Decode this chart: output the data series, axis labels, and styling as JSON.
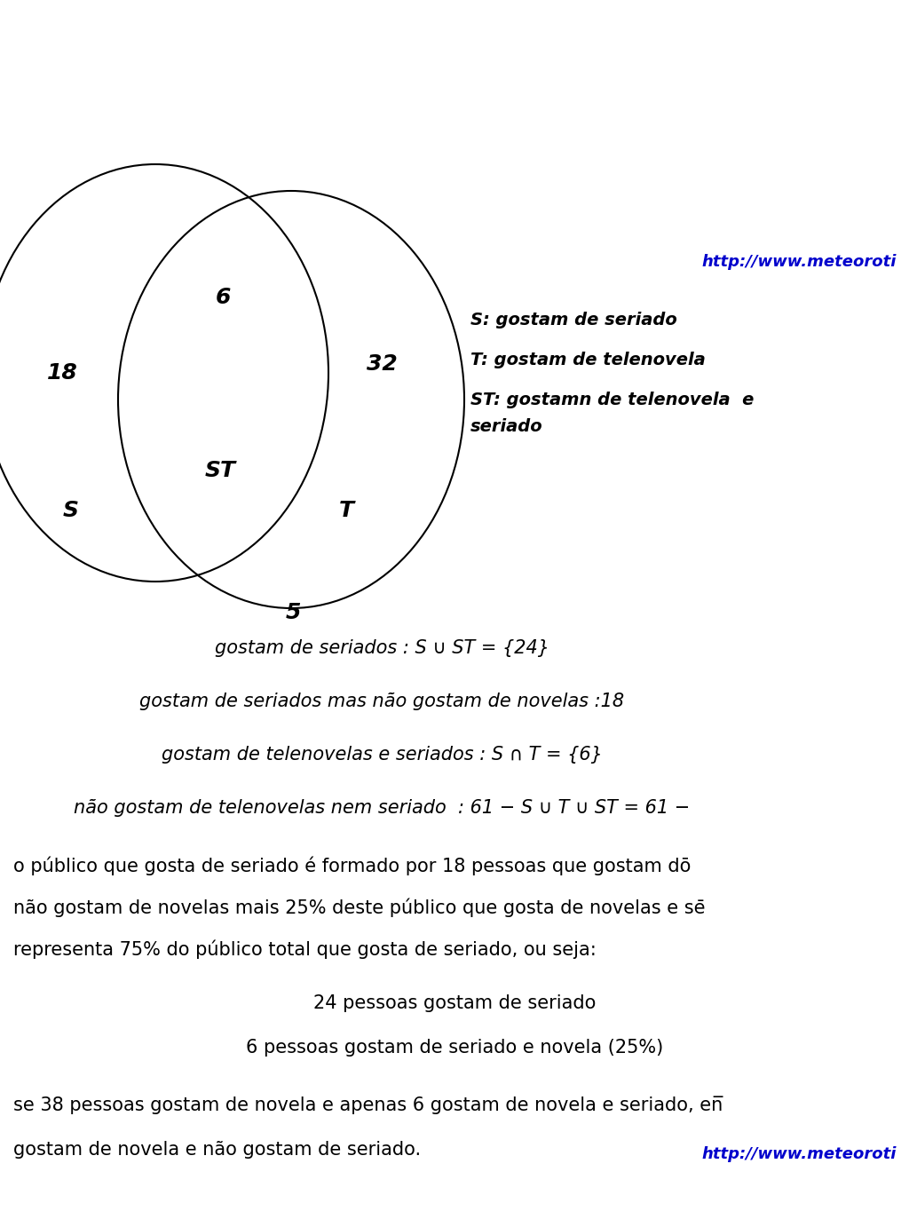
{
  "background_color": "#ffffff",
  "url_text": "http://www.meteoroti",
  "url_color": "#0000cc",
  "url_fontsize": 13,
  "circle_linewidth": 1.5,
  "circle_edgecolor": "#000000",
  "circle_facecolor": "none",
  "label_S": "S",
  "label_T": "T",
  "label_ST": "ST",
  "label_18": "18",
  "label_6": "6",
  "label_32": "32",
  "label_5": "5",
  "venn_fontsize": 18,
  "legend_S": "S: gostam de seriado",
  "legend_T": "T: gostam de telenovela",
  "legend_ST_line1": "ST: gostamn de telenovela  e",
  "legend_ST_line2": "seriado",
  "legend_fontsize": 14,
  "legend_color": "#000000",
  "line1": "gostam de seriados : S ∪ ST = {24}",
  "line2": "gostam de seriados mas não gostam de novelas :18",
  "line3": "gostam de telenovelas e seriados : S ∩ T = {6}",
  "line4": "não gostam de telenovelas nem seriado  : 61 − S ∪ T ∪ ST = 61 −",
  "line5": "o público que gosta de seriado é formado por 18 pessoas que gostam dō",
  "line6": "não gostam de novelas mais 25% deste público que gosta de novelas e sē",
  "line7": "representa 75% do público total que gosta de seriado, ou seja:",
  "line8": "24 pessoas gostam de seriado",
  "line9": "6 pessoas gostam de seriado e novela (25%)",
  "line10": "se 38 pessoas gostam de novela e apenas 6 gostam de novela e seriado, en̅",
  "line11": "gostam de novela e não gostam de seriado.",
  "text_fontsize": 15,
  "italic_fontsize": 15
}
